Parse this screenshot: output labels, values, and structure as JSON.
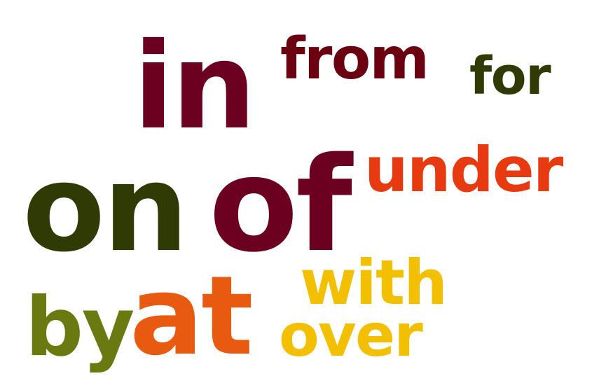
{
  "words": [
    {
      "id": "in",
      "text": "in",
      "color": "#6b0020"
    },
    {
      "id": "from",
      "text": "from",
      "color": "#6b0010"
    },
    {
      "id": "for",
      "text": "for",
      "color": "#2f3a04"
    },
    {
      "id": "on",
      "text": "on",
      "color": "#2f3a04"
    },
    {
      "id": "of",
      "text": "of",
      "color": "#6b0020"
    },
    {
      "id": "under",
      "text": "under",
      "color": "#e83a10"
    },
    {
      "id": "by",
      "text": "by",
      "color": "#6b7a10"
    },
    {
      "id": "at",
      "text": "at",
      "color": "#e85a10"
    },
    {
      "id": "with",
      "text": "with",
      "color": "#f2c000"
    },
    {
      "id": "over",
      "text": "over",
      "color": "#f2c000"
    }
  ]
}
